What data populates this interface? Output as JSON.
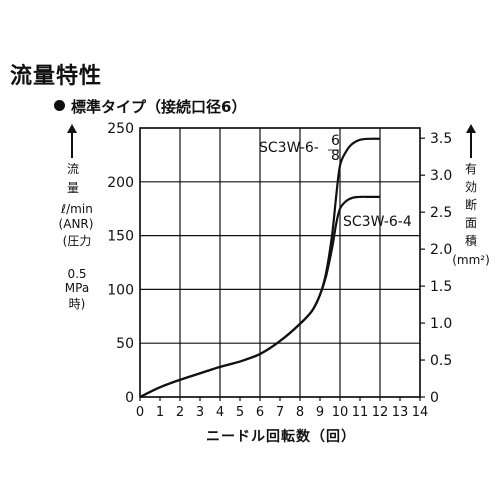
{
  "page": {
    "title": "流量特性",
    "subtitle": "標準タイプ（接続口径6）"
  },
  "left_axis": {
    "label_lines": [
      "流",
      "量"
    ],
    "unit": "ℓ/min",
    "unit2": "(ANR)",
    "cond_lines": [
      "(圧力",
      "0.5",
      "MPa",
      "時)"
    ]
  },
  "right_axis": {
    "label_lines": [
      "有",
      "効",
      "断",
      "面",
      "積"
    ],
    "unit": "(mm²)"
  },
  "chart_data": {
    "type": "line",
    "xlabel": "ニードル回転数（回）",
    "ylabel": "流量 ℓ/min (ANR)",
    "y2label": "有効断面積 (mm²)",
    "xlim": [
      0,
      14
    ],
    "ylim": [
      0,
      250
    ],
    "y2lim": [
      0,
      3.5
    ],
    "x_ticks": [
      "0",
      "1",
      "2",
      "3",
      "4",
      "5",
      "6",
      "7",
      "8",
      "9",
      "10",
      "11",
      "12",
      "13",
      "14"
    ],
    "y_ticks": [
      "0",
      "50",
      "100",
      "150",
      "200",
      "250"
    ],
    "y2_ticks": [
      "0",
      "0.5",
      "1.0",
      "1.5",
      "2.0",
      "2.5",
      "3.0",
      "3.5"
    ],
    "grid": true,
    "series": [
      {
        "name": "SC3W-6-6/8",
        "label_main": "SC3W-6-",
        "label_sup": "6",
        "label_sub": "8",
        "x": [
          0,
          1,
          2,
          3,
          4,
          5,
          6,
          7,
          8,
          8.6,
          9,
          9.3,
          9.6,
          9.8,
          10,
          10.3,
          10.6,
          11,
          11.5,
          12
        ],
        "y": [
          0,
          9,
          16,
          22,
          28,
          33,
          40,
          52,
          68,
          80,
          95,
          115,
          150,
          185,
          215,
          228,
          235,
          239,
          240,
          240
        ]
      },
      {
        "name": "SC3W-6-4",
        "label_main": "SC3W-6-4",
        "x": [
          0,
          1,
          2,
          3,
          4,
          5,
          6,
          7,
          8,
          8.6,
          9,
          9.3,
          9.6,
          9.8,
          10,
          10.3,
          10.6,
          11,
          11.5,
          12
        ],
        "y": [
          0,
          9,
          16,
          22,
          28,
          33,
          40,
          52,
          68,
          80,
          95,
          112,
          138,
          160,
          175,
          182,
          185,
          186,
          186,
          186
        ]
      }
    ]
  }
}
